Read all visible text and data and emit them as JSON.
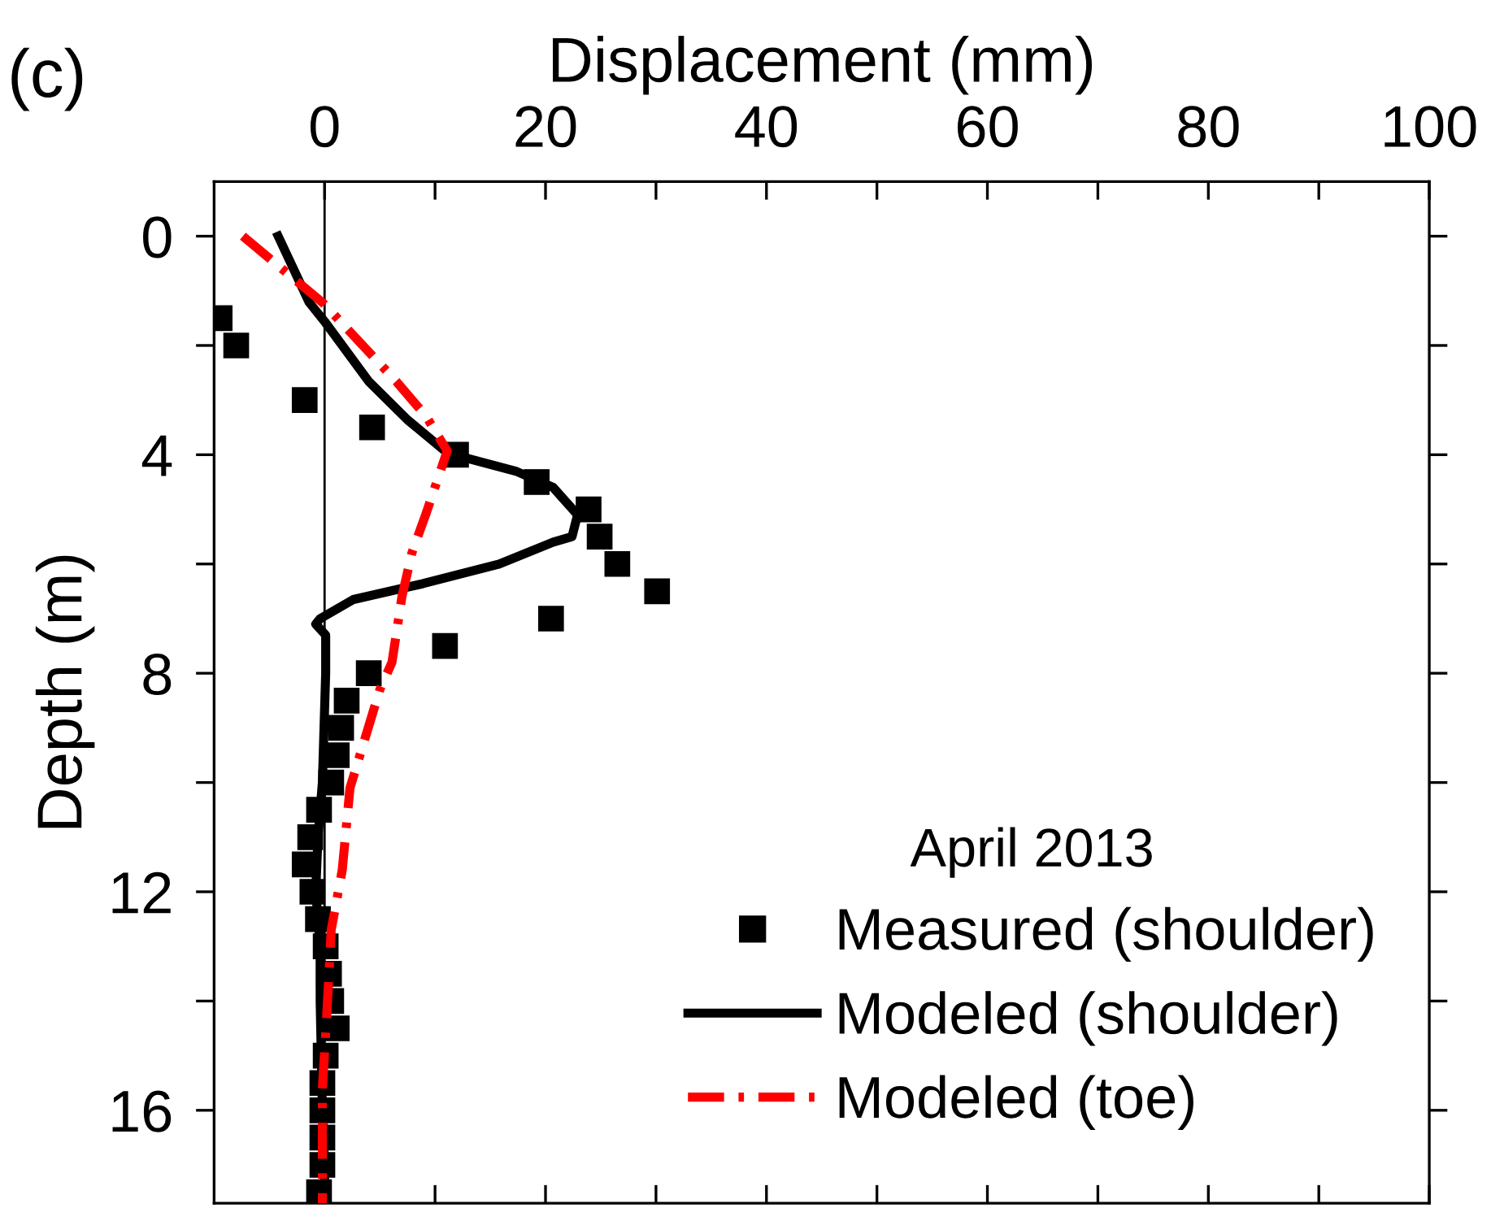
{
  "chart_data": {
    "type": "line",
    "xlabel": "Displacement (mm)",
    "ylabel": "Depth (m)",
    "legend_title": "April 2013",
    "annotations": [
      "(c)"
    ],
    "xlim": [
      -10,
      100
    ],
    "xticks": [
      0,
      {
        "value": 10,
        "label": null
      },
      20,
      {
        "value": 30,
        "label": null
      },
      40,
      {
        "value": 50,
        "label": null
      },
      60,
      {
        "value": 70,
        "label": null
      },
      80,
      {
        "value": 90,
        "label": null
      },
      100
    ],
    "ylim": [
      17.7,
      -1
    ],
    "yticks": [
      0,
      {
        "value": 2,
        "label": null
      },
      4,
      {
        "value": 6,
        "label": null
      },
      8,
      {
        "value": 10,
        "label": null
      },
      12,
      {
        "value": 14,
        "label": null
      },
      16
    ],
    "grid": false,
    "legend": "bottom right",
    "ref_lines": [
      {
        "axis": "x",
        "value": 0,
        "color": "#000000"
      }
    ],
    "series": [
      {
        "name": "Measured (shoulder)",
        "type": "scatter",
        "marker": "square",
        "color": "#000000",
        "x": [
          -9.5,
          -8,
          -1.8,
          4.3,
          11.9,
          19.2,
          23.9,
          24.9,
          26.5,
          30.1,
          20.5,
          10.9,
          4.0,
          2.0,
          1.5,
          1.1,
          0.6,
          -0.5,
          -1.3,
          -1.8,
          -1.1,
          -0.6,
          0.1,
          0.4,
          0.6,
          1.1,
          0.1,
          -0.2,
          -0.2,
          -0.2,
          -0.2,
          -0.5
        ],
        "values": [
          1.5,
          2.0,
          3.0,
          3.5,
          4.0,
          4.5,
          5.0,
          5.5,
          6.0,
          6.5,
          7.0,
          7.5,
          8.0,
          8.5,
          9.0,
          9.5,
          10.0,
          10.5,
          11.0,
          11.5,
          12.0,
          12.5,
          13.0,
          13.5,
          14.0,
          14.5,
          15.0,
          15.5,
          16.0,
          16.5,
          17.0,
          17.5
        ]
      },
      {
        "name": "Modeled (shoulder)",
        "line_style": "solid",
        "color": "#000000",
        "x": [
          -4.2,
          -1.4,
          0,
          4.0,
          7.5,
          10.9,
          12.8,
          17.3,
          20.7,
          22.9,
          22.4,
          20.7,
          15.8,
          8.9,
          2.6,
          -0.4,
          -0.8,
          0.1,
          0.1,
          -0.2,
          -0.6,
          -0.8,
          -0.4,
          -0.4,
          -0.3,
          -0.2,
          0,
          0
        ],
        "values": [
          0,
          1.21,
          1.56,
          2.66,
          3.36,
          3.93,
          4.06,
          4.3,
          4.6,
          5.1,
          5.5,
          5.6,
          6.0,
          6.36,
          6.65,
          7.0,
          7.1,
          7.3,
          8.0,
          10,
          11,
          12,
          13,
          14,
          15,
          16,
          17,
          17.7
        ]
      },
      {
        "name": "Modeled (toe)",
        "line_style": "dashdot",
        "color": "#ff0000",
        "x": [
          -7.4,
          -0.1,
          6.5,
          9.2,
          11.1,
          9.2,
          7.9,
          7.0,
          6.1,
          5.0,
          3.8,
          2.3,
          1.6,
          0.6,
          0.4,
          0.1,
          -0.2,
          -0.2
        ],
        "values": [
          0,
          1.23,
          2.66,
          3.3,
          3.93,
          5.07,
          5.8,
          6.6,
          7.8,
          8.3,
          9.1,
          10.1,
          11.6,
          12.7,
          13.5,
          14.6,
          15.6,
          17.7
        ]
      }
    ]
  }
}
